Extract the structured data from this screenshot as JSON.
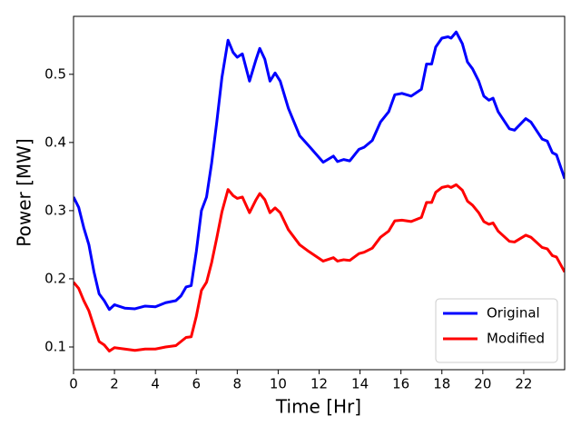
{
  "chart_data": {
    "type": "line",
    "xlabel": "Time [Hr]",
    "ylabel": "Power [MW]",
    "x": [
      0,
      0.25,
      0.5,
      0.75,
      1,
      1.25,
      1.5,
      1.75,
      2,
      2.5,
      3,
      3.5,
      4,
      4.5,
      5,
      5.25,
      5.5,
      5.75,
      6,
      6.25,
      6.5,
      6.75,
      7,
      7.25,
      7.55,
      7.8,
      8,
      8.25,
      8.6,
      8.9,
      9.1,
      9.35,
      9.6,
      9.85,
      10.1,
      10.5,
      11.05,
      11.5,
      12.2,
      12.7,
      12.9,
      13.2,
      13.5,
      13.95,
      14.2,
      14.6,
      15,
      15.4,
      15.7,
      16.05,
      16.5,
      17,
      17.25,
      17.5,
      17.7,
      18,
      18.3,
      18.45,
      18.7,
      19,
      19.25,
      19.5,
      19.8,
      20.05,
      20.3,
      20.5,
      20.75,
      21.3,
      21.55,
      22.1,
      22.35,
      22.9,
      23.15,
      23.4,
      23.6,
      24
    ],
    "series": [
      {
        "name": "Original",
        "color": "#0000ff",
        "values": [
          0.32,
          0.305,
          0.275,
          0.25,
          0.21,
          0.178,
          0.168,
          0.155,
          0.162,
          0.157,
          0.156,
          0.16,
          0.159,
          0.165,
          0.168,
          0.175,
          0.188,
          0.19,
          0.24,
          0.3,
          0.32,
          0.37,
          0.43,
          0.495,
          0.55,
          0.532,
          0.525,
          0.53,
          0.49,
          0.52,
          0.538,
          0.522,
          0.49,
          0.502,
          0.49,
          0.45,
          0.41,
          0.395,
          0.371,
          0.38,
          0.372,
          0.375,
          0.373,
          0.39,
          0.393,
          0.403,
          0.43,
          0.445,
          0.47,
          0.472,
          0.468,
          0.478,
          0.515,
          0.515,
          0.54,
          0.553,
          0.555,
          0.553,
          0.562,
          0.545,
          0.518,
          0.508,
          0.49,
          0.468,
          0.462,
          0.465,
          0.445,
          0.42,
          0.418,
          0.435,
          0.43,
          0.405,
          0.402,
          0.385,
          0.382,
          0.347
        ]
      },
      {
        "name": "Modified",
        "color": "#ff0000",
        "values": [
          0.195,
          0.186,
          0.168,
          0.153,
          0.13,
          0.108,
          0.103,
          0.094,
          0.099,
          0.097,
          0.095,
          0.097,
          0.097,
          0.1,
          0.102,
          0.108,
          0.114,
          0.115,
          0.145,
          0.183,
          0.195,
          0.224,
          0.26,
          0.298,
          0.331,
          0.322,
          0.318,
          0.32,
          0.297,
          0.315,
          0.325,
          0.316,
          0.297,
          0.304,
          0.297,
          0.272,
          0.25,
          0.24,
          0.226,
          0.231,
          0.226,
          0.228,
          0.227,
          0.237,
          0.239,
          0.245,
          0.261,
          0.27,
          0.285,
          0.286,
          0.284,
          0.29,
          0.312,
          0.312,
          0.327,
          0.334,
          0.336,
          0.334,
          0.338,
          0.33,
          0.314,
          0.308,
          0.297,
          0.284,
          0.28,
          0.282,
          0.27,
          0.255,
          0.254,
          0.264,
          0.261,
          0.246,
          0.244,
          0.234,
          0.232,
          0.21
        ]
      }
    ],
    "xlim": [
      0,
      24
    ],
    "xticks": [
      0,
      2,
      4,
      6,
      8,
      10,
      12,
      14,
      16,
      18,
      20,
      22
    ],
    "ylim": [
      0.0667,
      0.585
    ],
    "yticks": [
      0.1,
      0.2,
      0.3,
      0.4,
      0.5
    ],
    "legend": "lower right",
    "grid": false
  }
}
